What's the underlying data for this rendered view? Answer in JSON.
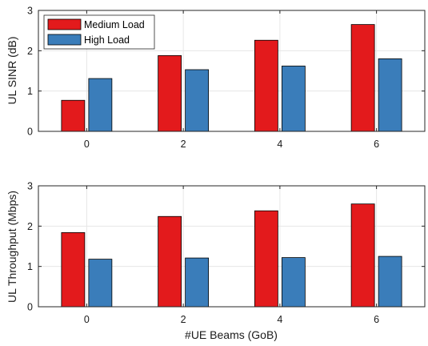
{
  "colors": {
    "medium": "#e31a1c",
    "high": "#3a7dba",
    "grid": "#e6e6e6",
    "axis": "#262626"
  },
  "legend": {
    "placement": "top-left"
  },
  "xlabel": "#UE Beams (GoB)",
  "chart_data": [
    {
      "type": "bar",
      "categories": [
        "0",
        "2",
        "4",
        "6"
      ],
      "series": [
        {
          "name": "Medium Load",
          "values": [
            0.77,
            1.88,
            2.26,
            2.65
          ]
        },
        {
          "name": "High Load",
          "values": [
            1.31,
            1.53,
            1.62,
            1.8
          ]
        }
      ],
      "ylabel": "UL SINR (dB)",
      "ylim": [
        0,
        3
      ],
      "yticks": [
        "0",
        "1",
        "2",
        "3"
      ],
      "grid": true,
      "legend": true
    },
    {
      "type": "bar",
      "categories": [
        "0",
        "2",
        "4",
        "6"
      ],
      "series": [
        {
          "name": "Medium Load",
          "values": [
            1.84,
            2.24,
            2.38,
            2.55
          ]
        },
        {
          "name": "High Load",
          "values": [
            1.18,
            1.21,
            1.22,
            1.25
          ]
        }
      ],
      "xlabel": "#UE Beams (GoB)",
      "ylabel": "UL Throughput (Mbps)",
      "ylim": [
        0,
        3
      ],
      "yticks": [
        "0",
        "1",
        "2",
        "3"
      ],
      "grid": true,
      "legend": false
    }
  ]
}
